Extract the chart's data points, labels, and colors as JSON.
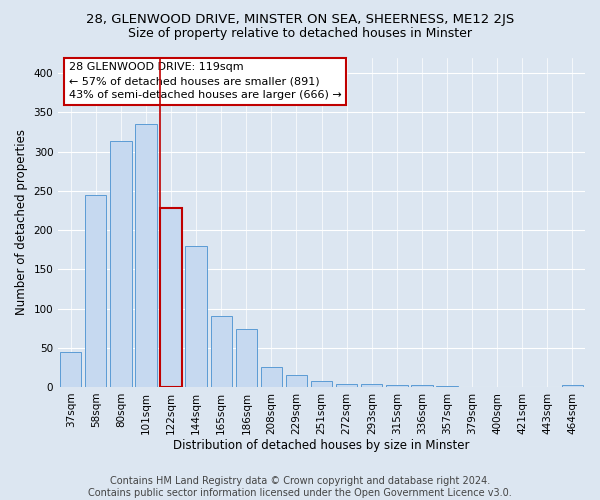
{
  "title_line1": "28, GLENWOOD DRIVE, MINSTER ON SEA, SHEERNESS, ME12 2JS",
  "title_line2": "Size of property relative to detached houses in Minster",
  "xlabel": "Distribution of detached houses by size in Minster",
  "ylabel": "Number of detached properties",
  "bar_labels": [
    "37sqm",
    "58sqm",
    "80sqm",
    "101sqm",
    "122sqm",
    "144sqm",
    "165sqm",
    "186sqm",
    "208sqm",
    "229sqm",
    "251sqm",
    "272sqm",
    "293sqm",
    "315sqm",
    "336sqm",
    "357sqm",
    "379sqm",
    "400sqm",
    "421sqm",
    "443sqm",
    "464sqm"
  ],
  "bar_values": [
    44,
    245,
    313,
    335,
    228,
    180,
    90,
    74,
    25,
    15,
    8,
    4,
    4,
    3,
    2,
    1,
    0,
    0,
    0,
    0,
    2
  ],
  "bar_color": "#c6d9f0",
  "bar_edge_color": "#5b9bd5",
  "highlight_bar_index": 4,
  "highlight_bar_edge_color": "#c00000",
  "vline_color": "#c00000",
  "ylim": [
    0,
    420
  ],
  "annotation_text": "28 GLENWOOD DRIVE: 119sqm\n← 57% of detached houses are smaller (891)\n43% of semi-detached houses are larger (666) →",
  "footer_text": "Contains HM Land Registry data © Crown copyright and database right 2024.\nContains public sector information licensed under the Open Government Licence v3.0.",
  "background_color": "#dce6f1",
  "plot_bg_color": "#dce6f1",
  "grid_color": "#ffffff",
  "title1_fontsize": 9.5,
  "title2_fontsize": 9,
  "xlabel_fontsize": 8.5,
  "ylabel_fontsize": 8.5,
  "tick_fontsize": 7.5,
  "footer_fontsize": 7,
  "ann_fontsize": 8
}
